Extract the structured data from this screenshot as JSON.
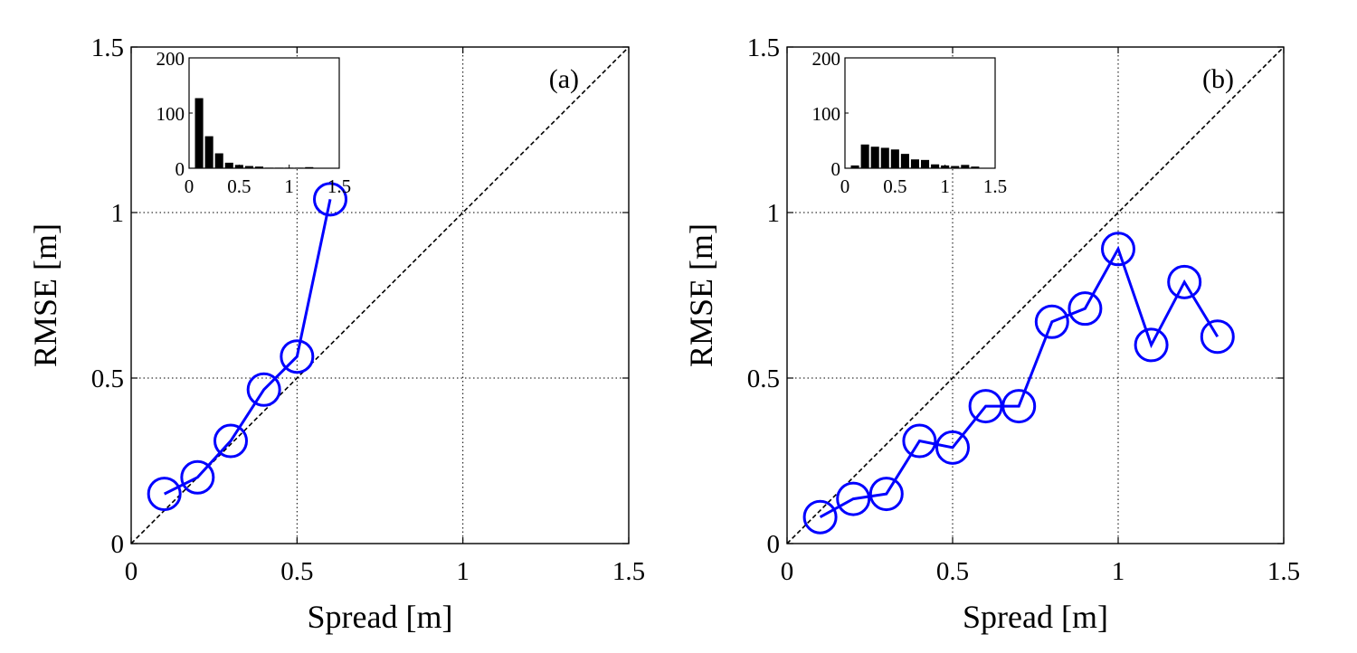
{
  "chart_data": [
    {
      "type": "line",
      "panel_label": "(a)",
      "xlabel": "Spread [m]",
      "ylabel": "RMSE [m]",
      "xlim": [
        0,
        1.5
      ],
      "ylim": [
        0,
        1.5
      ],
      "xticks": [
        "0",
        "0.5",
        "1",
        "1.5"
      ],
      "yticks": [
        "0",
        "0.5",
        "1",
        "1.5"
      ],
      "grid": true,
      "diagonal": "y = x (dashed)",
      "series": [
        {
          "name": "RMSE vs spread",
          "color": "#0000ff",
          "marker": "circle",
          "x": [
            0.1,
            0.2,
            0.3,
            0.4,
            0.5,
            0.6
          ],
          "y": [
            0.15,
            0.2,
            0.31,
            0.465,
            0.565,
            1.04
          ]
        }
      ],
      "inset": {
        "type": "bar",
        "xlim": [
          0,
          1.5
        ],
        "ylim": [
          0,
          200
        ],
        "xticks": [
          "0",
          "0.5",
          "1",
          "1.5"
        ],
        "yticks": [
          "0",
          "100",
          "200"
        ],
        "bin_width": 0.1,
        "centers": [
          0.1,
          0.2,
          0.3,
          0.4,
          0.5,
          0.6,
          0.7,
          0.8,
          0.9,
          1.0,
          1.1,
          1.2,
          1.3
        ],
        "values": [
          127,
          58,
          27,
          10,
          6,
          4,
          3,
          1,
          1,
          1,
          1,
          2,
          0
        ]
      }
    },
    {
      "type": "line",
      "panel_label": "(b)",
      "xlabel": "Spread [m]",
      "ylabel": "RMSE [m]",
      "xlim": [
        0,
        1.5
      ],
      "ylim": [
        0,
        1.5
      ],
      "xticks": [
        "0",
        "0.5",
        "1",
        "1.5"
      ],
      "yticks": [
        "0",
        "0.5",
        "1",
        "1.5"
      ],
      "grid": true,
      "diagonal": "y = x (dashed)",
      "series": [
        {
          "name": "RMSE vs spread",
          "color": "#0000ff",
          "marker": "circle",
          "x": [
            0.1,
            0.2,
            0.3,
            0.4,
            0.5,
            0.6,
            0.7,
            0.8,
            0.9,
            1.0,
            1.1,
            1.2,
            1.3
          ],
          "y": [
            0.08,
            0.135,
            0.15,
            0.31,
            0.29,
            0.415,
            0.415,
            0.67,
            0.71,
            0.89,
            0.6,
            0.79,
            0.625
          ]
        }
      ],
      "inset": {
        "type": "bar",
        "xlim": [
          0,
          1.5
        ],
        "ylim": [
          0,
          200
        ],
        "xticks": [
          "0",
          "0.5",
          "1",
          "1.5"
        ],
        "yticks": [
          "0",
          "100",
          "200"
        ],
        "bin_width": 0.1,
        "centers": [
          0.1,
          0.2,
          0.3,
          0.4,
          0.5,
          0.6,
          0.7,
          0.8,
          0.9,
          1.0,
          1.1,
          1.2,
          1.3
        ],
        "values": [
          5,
          43,
          39,
          37,
          34,
          26,
          16,
          15,
          7,
          5,
          4,
          6,
          3
        ]
      }
    }
  ]
}
